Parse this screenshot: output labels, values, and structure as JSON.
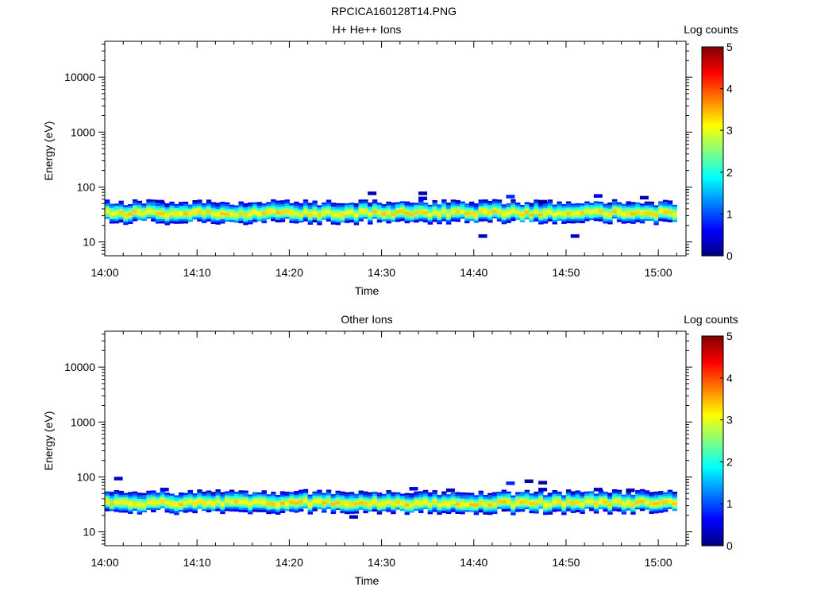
{
  "figure_title": "RPCICA160128T14.PNG",
  "chart_data": [
    {
      "type": "heatmap",
      "title": "H+ He++ Ions",
      "xlabel": "Time",
      "ylabel": "Energy (eV)",
      "xlim": [
        "14:00",
        "15:03"
      ],
      "x_ticks": [
        "14:00",
        "14:10",
        "14:20",
        "14:30",
        "14:40",
        "14:50",
        "15:00"
      ],
      "ylim": [
        5.6,
        45000
      ],
      "y_scale": "log",
      "y_ticks": [
        10,
        100,
        1000,
        10000
      ],
      "y_tick_labels": [
        "10",
        "100",
        "1000",
        "10000"
      ],
      "colorbar": {
        "label": "Log counts",
        "range": [
          0,
          5
        ],
        "ticks": [
          "0",
          "1",
          "2",
          "3",
          "4",
          "5"
        ]
      },
      "band": {
        "time_start": "14:00",
        "time_end": "15:02",
        "energy_low": 22,
        "energy_high": 55,
        "peak_energy": 33,
        "peak_log_counts": 3.2
      },
      "sporadic_counts": [
        {
          "time": "14:05.5",
          "energy": 55,
          "log_counts": 0.4
        },
        {
          "time": "14:28.5",
          "energy": 78,
          "log_counts": 0.2
        },
        {
          "time": "14:34",
          "energy": 78,
          "log_counts": 0.2
        },
        {
          "time": "14:34",
          "energy": 63,
          "log_counts": 0.4
        },
        {
          "time": "14:40.5",
          "energy": 13,
          "log_counts": 0.3
        },
        {
          "time": "14:43.5",
          "energy": 68,
          "log_counts": 0.8
        },
        {
          "time": "14:47",
          "energy": 55,
          "log_counts": 0.2
        },
        {
          "time": "14:50.5",
          "energy": 13,
          "log_counts": 0.3
        },
        {
          "time": "14:53",
          "energy": 70,
          "log_counts": 0.5
        },
        {
          "time": "14:58",
          "energy": 65,
          "log_counts": 0.2
        }
      ]
    },
    {
      "type": "heatmap",
      "title": "Other Ions",
      "xlabel": "Time",
      "ylabel": "Energy (eV)",
      "xlim": [
        "14:00",
        "15:03"
      ],
      "x_ticks": [
        "14:00",
        "14:10",
        "14:20",
        "14:30",
        "14:40",
        "14:50",
        "15:00"
      ],
      "ylim": [
        5.6,
        45000
      ],
      "y_scale": "log",
      "y_ticks": [
        10,
        100,
        1000,
        10000
      ],
      "y_tick_labels": [
        "10",
        "100",
        "1000",
        "10000"
      ],
      "colorbar": {
        "label": "Log counts",
        "range": [
          0,
          5
        ],
        "ticks": [
          "0",
          "1",
          "2",
          "3",
          "4",
          "5"
        ]
      },
      "band": {
        "time_start": "14:00",
        "time_end": "15:02",
        "energy_low": 22,
        "energy_high": 55,
        "peak_energy": 33,
        "peak_log_counts": 3.2
      },
      "sporadic_counts": [
        {
          "time": "14:01",
          "energy": 95,
          "log_counts": 0.3
        },
        {
          "time": "14:06",
          "energy": 60,
          "log_counts": 0.5
        },
        {
          "time": "14:26.5",
          "energy": 19,
          "log_counts": 0.3
        },
        {
          "time": "14:33",
          "energy": 62,
          "log_counts": 0.5
        },
        {
          "time": "14:37",
          "energy": 58,
          "log_counts": 0.3
        },
        {
          "time": "14:43.5",
          "energy": 78,
          "log_counts": 0.8
        },
        {
          "time": "14:45.5",
          "energy": 85,
          "log_counts": 0.2
        },
        {
          "time": "14:47",
          "energy": 80,
          "log_counts": 0.2
        },
        {
          "time": "14:47",
          "energy": 60,
          "log_counts": 0.3
        },
        {
          "time": "14:53",
          "energy": 60,
          "log_counts": 0.3
        },
        {
          "time": "14:56.5",
          "energy": 58,
          "log_counts": 0.2
        }
      ]
    }
  ]
}
